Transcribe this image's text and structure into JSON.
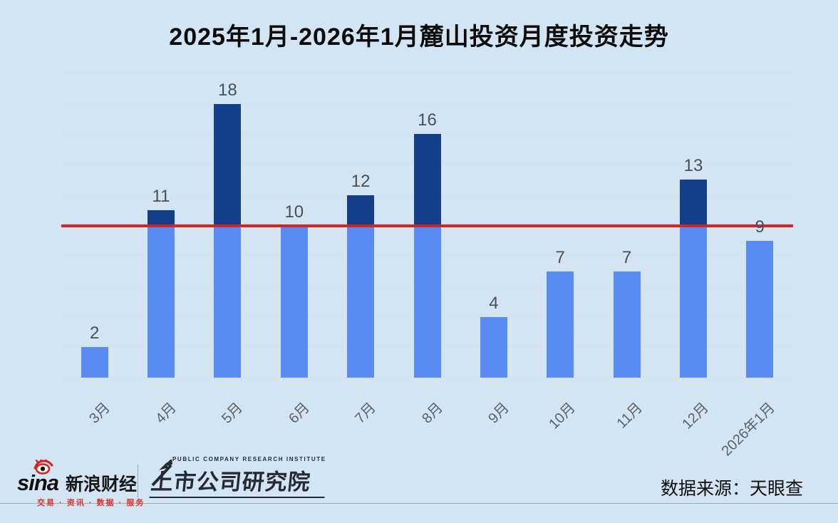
{
  "chart_data": {
    "type": "bar",
    "title": "2025年1月-2026年1月麓山投资月度投资走势",
    "categories": [
      "3月",
      "4月",
      "5月",
      "6月",
      "7月",
      "8月",
      "9月",
      "10月",
      "11月",
      "12月",
      "2026年1月"
    ],
    "values": [
      2,
      11,
      18,
      10,
      12,
      16,
      4,
      7,
      7,
      13,
      9
    ],
    "xlabel": "",
    "ylabel": "",
    "ylim": [
      0,
      20
    ],
    "grid_step": 2,
    "grid": "on",
    "legend": "none",
    "value_labels": "on",
    "reference_line": {
      "value": 10
    },
    "colors": {
      "background": "#d3e5f3",
      "bar_base": "#5a8bf2",
      "bar_above_line": "#14408a",
      "reference_line": "#dd2120",
      "gridline": "#d9dee3",
      "value_label": "#4b4f54",
      "axis_label": "#5c6166",
      "title": "#0b0b0b"
    }
  },
  "footer": {
    "sina": {
      "wordmark": "sina",
      "name": "新浪财经",
      "tagline": "交易 · 资讯 · 数据 · 服务",
      "accent_color": "#d9332f"
    },
    "institute": {
      "name_en": "PUBLIC COMPANY RESEARCH INSTITUTE",
      "name_cn": "上市公司研究院"
    },
    "source_label": "数据来源：天眼查"
  }
}
